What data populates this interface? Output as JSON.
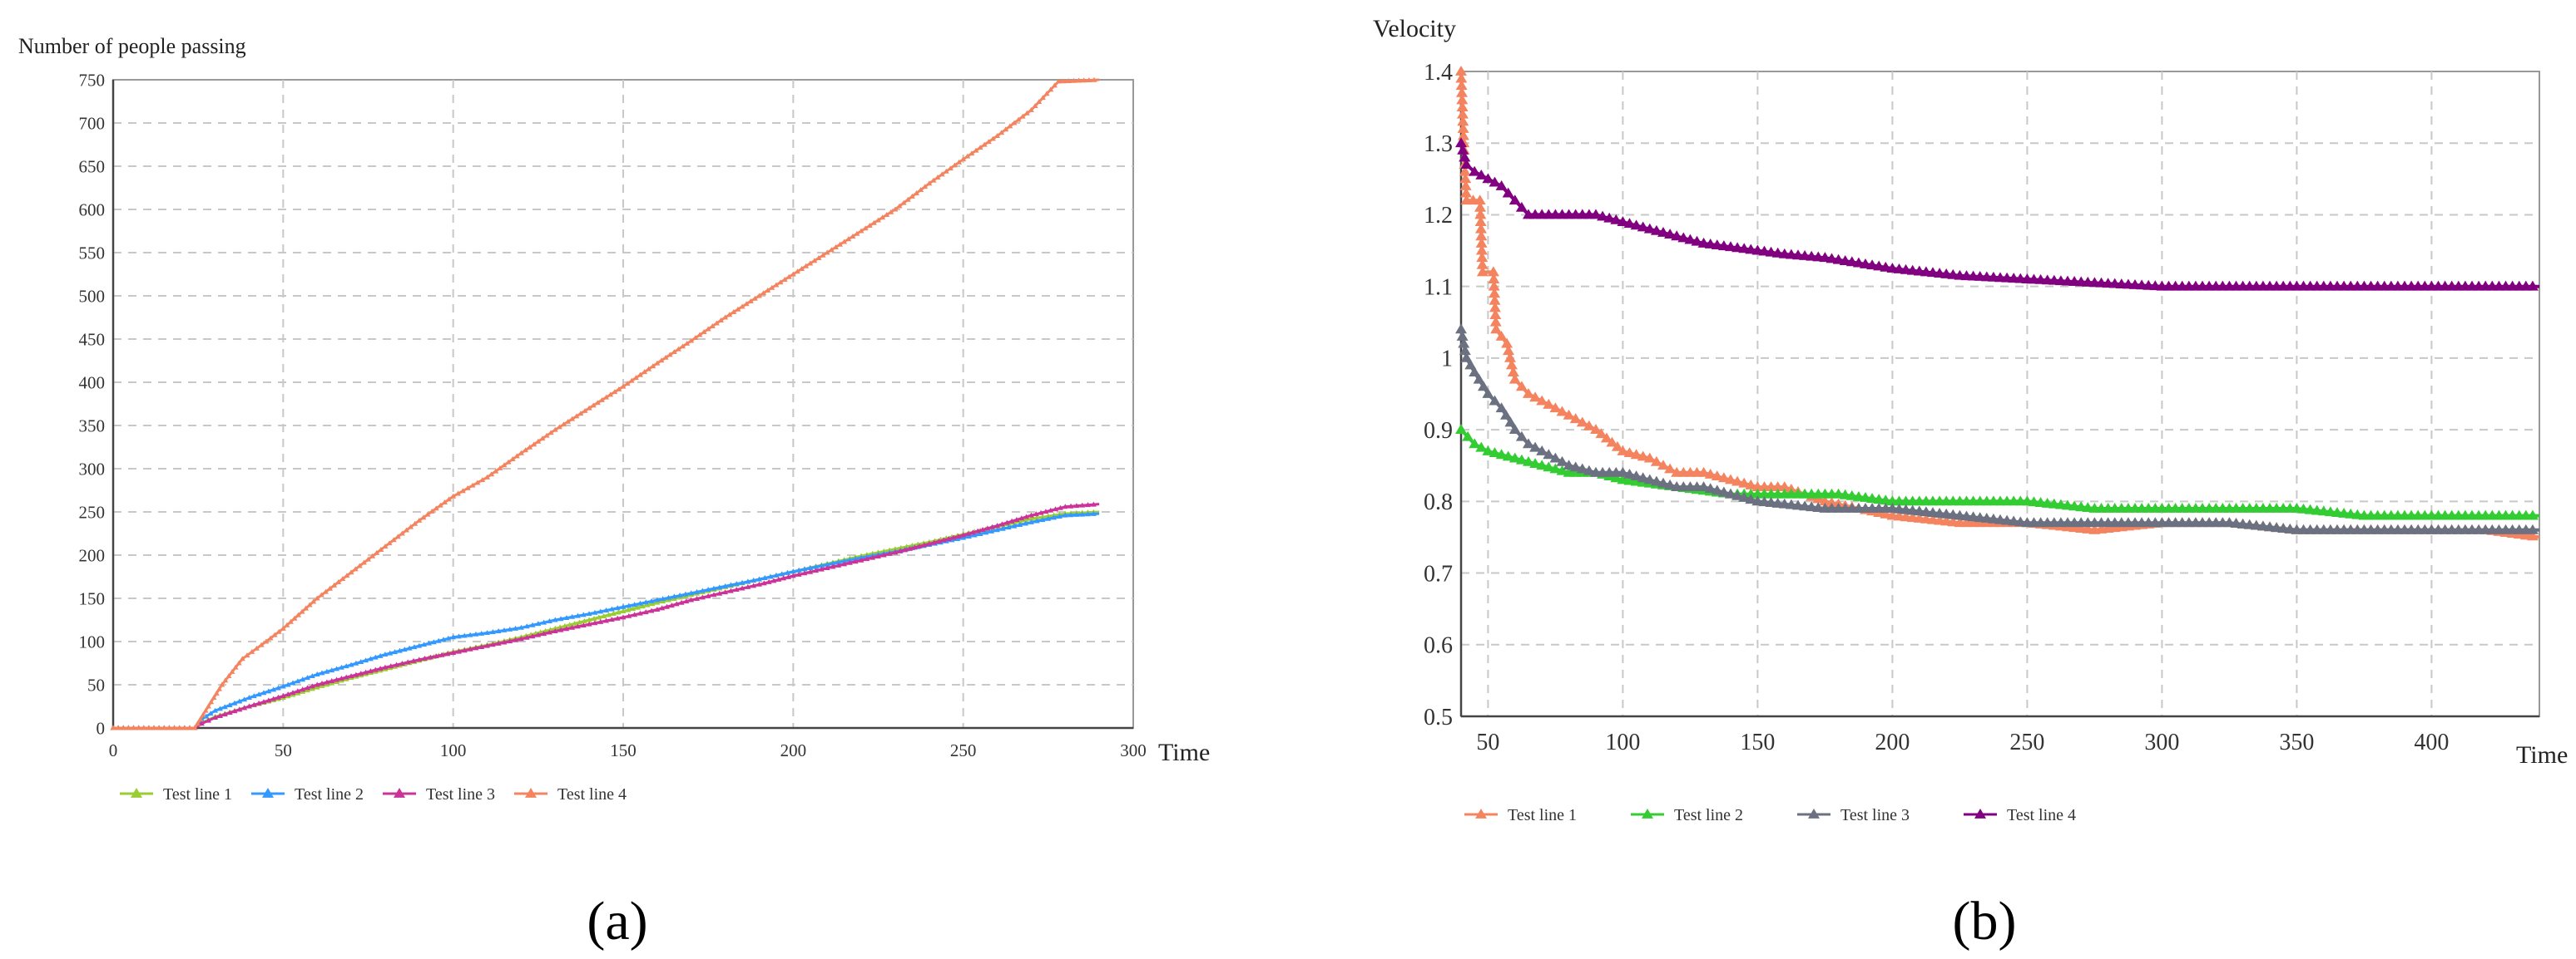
{
  "chart_data": [
    {
      "type": "line",
      "panel_label": "(a)",
      "ylabel": "Number of people passing",
      "xlabel": "Time",
      "xlim": [
        0,
        300
      ],
      "ylim": [
        0,
        750
      ],
      "xticks": [
        0,
        50,
        100,
        150,
        200,
        250,
        300
      ],
      "yticks": [
        0,
        50,
        100,
        150,
        200,
        250,
        300,
        350,
        400,
        450,
        500,
        550,
        600,
        650,
        700,
        750
      ],
      "grid": true,
      "legend_position": "bottom-left",
      "series": [
        {
          "name": "Test line 1",
          "color": "#9acd32",
          "points": [
            [
              0,
              0
            ],
            [
              24,
              0
            ],
            [
              26,
              6
            ],
            [
              30,
              13
            ],
            [
              40,
              25
            ],
            [
              50,
              35
            ],
            [
              60,
              47
            ],
            [
              70,
              58
            ],
            [
              80,
              68
            ],
            [
              90,
              78
            ],
            [
              100,
              88
            ],
            [
              110,
              96
            ],
            [
              120,
              105
            ],
            [
              130,
              115
            ],
            [
              140,
              125
            ],
            [
              150,
              135
            ],
            [
              160,
              145
            ],
            [
              170,
              154
            ],
            [
              180,
              163
            ],
            [
              190,
              172
            ],
            [
              200,
              181
            ],
            [
              210,
              190
            ],
            [
              220,
              199
            ],
            [
              230,
              207
            ],
            [
              240,
              215
            ],
            [
              250,
              224
            ],
            [
              260,
              233
            ],
            [
              270,
              242
            ],
            [
              280,
              248
            ],
            [
              290,
              250
            ]
          ]
        },
        {
          "name": "Test line 2",
          "color": "#3399ff",
          "points": [
            [
              0,
              0
            ],
            [
              24,
              0
            ],
            [
              26,
              10
            ],
            [
              30,
              20
            ],
            [
              40,
              35
            ],
            [
              50,
              48
            ],
            [
              60,
              62
            ],
            [
              70,
              73
            ],
            [
              80,
              85
            ],
            [
              90,
              95
            ],
            [
              100,
              105
            ],
            [
              110,
              110
            ],
            [
              120,
              116
            ],
            [
              130,
              125
            ],
            [
              140,
              132
            ],
            [
              150,
              140
            ],
            [
              160,
              148
            ],
            [
              170,
              156
            ],
            [
              180,
              164
            ],
            [
              190,
              172
            ],
            [
              200,
              181
            ],
            [
              210,
              189
            ],
            [
              220,
              197
            ],
            [
              230,
              204
            ],
            [
              240,
              212
            ],
            [
              250,
              220
            ],
            [
              260,
              229
            ],
            [
              270,
              238
            ],
            [
              280,
              246
            ],
            [
              290,
              248
            ]
          ]
        },
        {
          "name": "Test line 3",
          "color": "#cc3399",
          "points": [
            [
              0,
              0
            ],
            [
              24,
              0
            ],
            [
              26,
              5
            ],
            [
              30,
              12
            ],
            [
              40,
              25
            ],
            [
              50,
              37
            ],
            [
              60,
              50
            ],
            [
              70,
              60
            ],
            [
              80,
              70
            ],
            [
              90,
              79
            ],
            [
              100,
              87
            ],
            [
              110,
              95
            ],
            [
              120,
              103
            ],
            [
              130,
              112
            ],
            [
              140,
              120
            ],
            [
              150,
              128
            ],
            [
              160,
              137
            ],
            [
              170,
              148
            ],
            [
              180,
              157
            ],
            [
              190,
              166
            ],
            [
              200,
              176
            ],
            [
              210,
              185
            ],
            [
              220,
              194
            ],
            [
              230,
              203
            ],
            [
              240,
              213
            ],
            [
              250,
              223
            ],
            [
              260,
              234
            ],
            [
              270,
              246
            ],
            [
              280,
              256
            ],
            [
              290,
              259
            ]
          ]
        },
        {
          "name": "Test line 4",
          "color": "#f4845f",
          "points": [
            [
              0,
              0
            ],
            [
              24,
              0
            ],
            [
              28,
              25
            ],
            [
              32,
              50
            ],
            [
              38,
              80
            ],
            [
              45,
              100
            ],
            [
              50,
              115
            ],
            [
              60,
              150
            ],
            [
              70,
              180
            ],
            [
              80,
              210
            ],
            [
              90,
              240
            ],
            [
              100,
              268
            ],
            [
              110,
              290
            ],
            [
              120,
              318
            ],
            [
              130,
              345
            ],
            [
              140,
              370
            ],
            [
              150,
              395
            ],
            [
              160,
              422
            ],
            [
              170,
              448
            ],
            [
              180,
              475
            ],
            [
              190,
              500
            ],
            [
              200,
              525
            ],
            [
              210,
              550
            ],
            [
              220,
              575
            ],
            [
              230,
              600
            ],
            [
              240,
              630
            ],
            [
              250,
              658
            ],
            [
              260,
              685
            ],
            [
              270,
              715
            ],
            [
              278,
              748
            ],
            [
              290,
              750
            ]
          ]
        }
      ]
    },
    {
      "type": "line",
      "panel_label": "(b)",
      "ylabel": "Velocity",
      "xlabel": "Time",
      "xlim": [
        40,
        440
      ],
      "ylim": [
        0.5,
        1.4
      ],
      "xticks": [
        50,
        100,
        150,
        200,
        250,
        300,
        350,
        400
      ],
      "yticks": [
        0.5,
        0.6,
        0.7,
        0.8,
        0.9,
        1,
        1.1,
        1.2,
        1.3,
        1.4
      ],
      "ytick_labels": [
        "0.5",
        "0.6",
        "0.7",
        "0.8",
        "0.9",
        "1",
        "1.1",
        "1.2",
        "1.3",
        "1.4"
      ],
      "grid": true,
      "legend_position": "bottom-left",
      "series": [
        {
          "name": "Test line 1",
          "color": "#f4845f",
          "points": [
            [
              40,
              1.4
            ],
            [
              41,
              1.3
            ],
            [
              42,
              1.22
            ],
            [
              47,
              1.22
            ],
            [
              48,
              1.12
            ],
            [
              52,
              1.12
            ],
            [
              53,
              1.04
            ],
            [
              57,
              1.02
            ],
            [
              60,
              0.97
            ],
            [
              65,
              0.95
            ],
            [
              70,
              0.94
            ],
            [
              75,
              0.93
            ],
            [
              80,
              0.92
            ],
            [
              90,
              0.9
            ],
            [
              100,
              0.87
            ],
            [
              110,
              0.86
            ],
            [
              120,
              0.84
            ],
            [
              130,
              0.84
            ],
            [
              140,
              0.83
            ],
            [
              150,
              0.82
            ],
            [
              160,
              0.82
            ],
            [
              175,
              0.8
            ],
            [
              200,
              0.78
            ],
            [
              225,
              0.77
            ],
            [
              250,
              0.77
            ],
            [
              275,
              0.76
            ],
            [
              300,
              0.77
            ],
            [
              325,
              0.77
            ],
            [
              350,
              0.76
            ],
            [
              375,
              0.76
            ],
            [
              400,
              0.76
            ],
            [
              420,
              0.76
            ],
            [
              440,
              0.75
            ]
          ]
        },
        {
          "name": "Test line 2",
          "color": "#33cc33",
          "points": [
            [
              40,
              0.9
            ],
            [
              45,
              0.88
            ],
            [
              50,
              0.87
            ],
            [
              60,
              0.86
            ],
            [
              70,
              0.85
            ],
            [
              80,
              0.84
            ],
            [
              90,
              0.84
            ],
            [
              100,
              0.83
            ],
            [
              120,
              0.82
            ],
            [
              140,
              0.81
            ],
            [
              160,
              0.81
            ],
            [
              180,
              0.81
            ],
            [
              200,
              0.8
            ],
            [
              225,
              0.8
            ],
            [
              250,
              0.8
            ],
            [
              275,
              0.79
            ],
            [
              300,
              0.79
            ],
            [
              325,
              0.79
            ],
            [
              350,
              0.79
            ],
            [
              375,
              0.78
            ],
            [
              400,
              0.78
            ],
            [
              420,
              0.78
            ],
            [
              440,
              0.78
            ]
          ]
        },
        {
          "name": "Test line 3",
          "color": "#6b7180",
          "points": [
            [
              40,
              1.04
            ],
            [
              42,
              1.0
            ],
            [
              45,
              0.98
            ],
            [
              50,
              0.95
            ],
            [
              55,
              0.93
            ],
            [
              60,
              0.9
            ],
            [
              65,
              0.88
            ],
            [
              70,
              0.87
            ],
            [
              75,
              0.86
            ],
            [
              80,
              0.85
            ],
            [
              90,
              0.84
            ],
            [
              100,
              0.84
            ],
            [
              110,
              0.83
            ],
            [
              120,
              0.82
            ],
            [
              130,
              0.82
            ],
            [
              140,
              0.81
            ],
            [
              150,
              0.8
            ],
            [
              175,
              0.79
            ],
            [
              200,
              0.79
            ],
            [
              225,
              0.78
            ],
            [
              250,
              0.77
            ],
            [
              275,
              0.77
            ],
            [
              300,
              0.77
            ],
            [
              325,
              0.77
            ],
            [
              350,
              0.76
            ],
            [
              375,
              0.76
            ],
            [
              400,
              0.76
            ],
            [
              420,
              0.76
            ],
            [
              440,
              0.76
            ]
          ]
        },
        {
          "name": "Test line 4",
          "color": "#800080",
          "points": [
            [
              40,
              1.3
            ],
            [
              42,
              1.27
            ],
            [
              45,
              1.26
            ],
            [
              50,
              1.25
            ],
            [
              55,
              1.24
            ],
            [
              60,
              1.22
            ],
            [
              65,
              1.2
            ],
            [
              75,
              1.2
            ],
            [
              90,
              1.2
            ],
            [
              100,
              1.19
            ],
            [
              110,
              1.18
            ],
            [
              120,
              1.17
            ],
            [
              130,
              1.16
            ],
            [
              140,
              1.155
            ],
            [
              150,
              1.15
            ],
            [
              160,
              1.145
            ],
            [
              175,
              1.14
            ],
            [
              200,
              1.125
            ],
            [
              225,
              1.115
            ],
            [
              250,
              1.11
            ],
            [
              275,
              1.105
            ],
            [
              300,
              1.1
            ],
            [
              325,
              1.1
            ],
            [
              350,
              1.1
            ],
            [
              375,
              1.1
            ],
            [
              400,
              1.1
            ],
            [
              420,
              1.1
            ],
            [
              440,
              1.1
            ]
          ]
        }
      ]
    }
  ]
}
